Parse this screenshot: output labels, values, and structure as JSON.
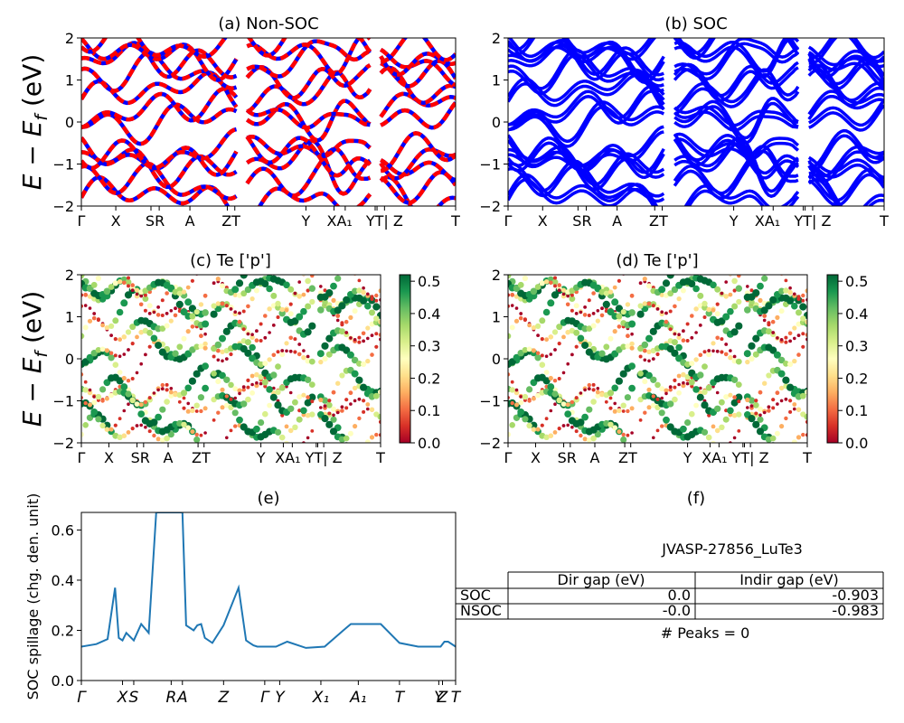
{
  "panels": {
    "a": {
      "title": "(a) Non-SOC"
    },
    "b": {
      "title": "(b) SOC"
    },
    "c": {
      "title": "(c)  Te ['p']"
    },
    "d": {
      "title": "(d) Te ['p']"
    },
    "e": {
      "title": "(e)"
    },
    "f": {
      "title": "(f)"
    }
  },
  "band_axes": {
    "ylabel": "E − E_f (eV)",
    "ylim": [
      -2,
      2
    ],
    "yticks": [
      "2",
      "1",
      "0",
      "−1",
      "−2"
    ],
    "kpath_labels": [
      "Γ",
      "X",
      "S",
      "R",
      "A",
      "Z",
      "T",
      "Y",
      "X",
      "A₁",
      "Y",
      "T",
      "| Z",
      "T"
    ],
    "kpath_label_display": [
      "Γ",
      "X",
      "SR",
      "A",
      "ZT",
      "Y",
      "XA₁",
      "YT| Z",
      "T"
    ]
  },
  "colorbar": {
    "ticks": [
      "0.5",
      "0.4",
      "0.3",
      "0.2",
      "0.1",
      "0.0"
    ],
    "range": [
      0.0,
      0.52
    ],
    "colormap": "RdYlGn"
  },
  "colors": {
    "non_soc_line": "#ff0000",
    "soc_line": "#0000ff",
    "spillage_line": "#1f77b4"
  },
  "chart_data": [
    {
      "type": "line",
      "panel": "a",
      "title": "(a) Non-SOC",
      "ylabel": "E − E_f (eV)",
      "ylim": [
        -2,
        2
      ],
      "series": [
        {
          "values_approx": [
            -0.75,
            -1.0,
            -0.8,
            -0.75,
            -0.9,
            -1.0
          ]
        },
        {
          "values_approx": [
            0.1,
            0.0,
            0.1,
            0.6,
            0.1,
            0.0
          ]
        },
        {
          "values_approx": [
            1.2,
            1.5,
            1.1,
            1.3,
            1.7,
            1.3
          ]
        }
      ]
    },
    {
      "type": "line",
      "panel": "b",
      "title": "(b) SOC",
      "ylabel": "",
      "ylim": [
        -2,
        2
      ]
    },
    {
      "type": "scatter",
      "panel": "c",
      "title": "(c)  Te ['p']",
      "ylabel": "E − E_f (eV)",
      "ylim": [
        -2,
        2
      ]
    },
    {
      "type": "scatter",
      "panel": "d",
      "title": "(d) Te ['p']",
      "ylabel": "",
      "ylim": [
        -2,
        2
      ]
    },
    {
      "type": "line",
      "panel": "e",
      "title": "(e)",
      "xlabel": "",
      "ylabel": "SOC spillage (chg. den. unit)",
      "ylim": [
        0.0,
        0.67
      ],
      "yticks": [
        "0.6",
        "0.4",
        "0.2",
        "0.0"
      ],
      "xticks": [
        "Γ",
        "X",
        "S",
        "R",
        "A",
        "Z",
        "Γ",
        "Y",
        "X₁",
        "A₁",
        "T",
        "Y",
        "Z",
        "T"
      ],
      "x": [
        0,
        0.04,
        0.07,
        0.09,
        0.1,
        0.11,
        0.12,
        0.14,
        0.16,
        0.18,
        0.2,
        0.22,
        0.24,
        0.25,
        0.26,
        0.27,
        0.28,
        0.3,
        0.31,
        0.32,
        0.33,
        0.35,
        0.38,
        0.42,
        0.44,
        0.45,
        0.46,
        0.47,
        0.5,
        0.52,
        0.55,
        0.6,
        0.65,
        0.7,
        0.72,
        0.75,
        0.8,
        0.85,
        0.9,
        0.95,
        0.96,
        0.97,
        0.98,
        1.0
      ],
      "y": [
        0.135,
        0.145,
        0.165,
        0.37,
        0.17,
        0.16,
        0.19,
        0.16,
        0.225,
        0.19,
        0.67,
        0.67,
        0.67,
        0.67,
        0.67,
        0.67,
        0.22,
        0.2,
        0.22,
        0.225,
        0.17,
        0.15,
        0.22,
        0.37,
        0.16,
        0.15,
        0.14,
        0.135,
        0.135,
        0.135,
        0.155,
        0.13,
        0.135,
        0.2,
        0.225,
        0.225,
        0.225,
        0.15,
        0.135,
        0.135,
        0.135,
        0.155,
        0.155,
        0.135
      ]
    }
  ],
  "info": {
    "material": "JVASP-27856_LuTe3",
    "table": {
      "headers": [
        "",
        "Dir gap (eV)",
        "Indir gap (eV)"
      ],
      "rows": [
        {
          "label": "SOC",
          "dir": "0.0",
          "indir": "-0.903"
        },
        {
          "label": "NSOC",
          "dir": "-0.0",
          "indir": "-0.983"
        }
      ]
    },
    "peaks": "# Peaks = 0"
  }
}
